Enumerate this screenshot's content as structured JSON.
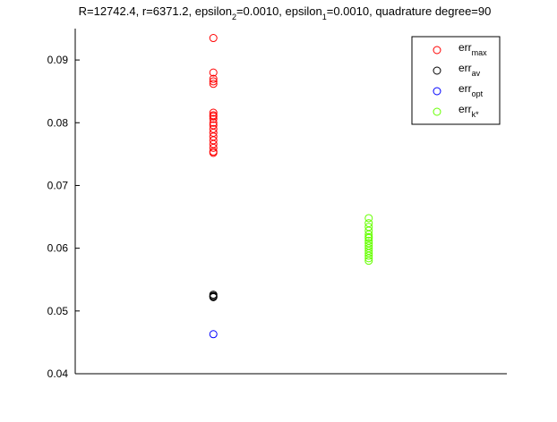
{
  "chart_data": {
    "type": "scatter",
    "title": {
      "parts": [
        {
          "text": "R=12742.4, r=6371.2, epsilon",
          "sub": false
        },
        {
          "text": "2",
          "sub": true
        },
        {
          "text": "=0.0010, epsilon",
          "sub": false
        },
        {
          "text": "1",
          "sub": true
        },
        {
          "text": "=0.0010, quadrature degree=90",
          "sub": false
        }
      ]
    },
    "xlabel": "",
    "ylabel": "",
    "ylim": [
      0.04,
      0.095
    ],
    "yticks": [
      0.04,
      0.05,
      0.06,
      0.07,
      0.08,
      0.09
    ],
    "ytick_labels": [
      "0.04",
      "0.05",
      "0.06",
      "0.07",
      "0.08",
      "0.09"
    ],
    "xlim": [
      0,
      1
    ],
    "legend_position": "top-right",
    "series": [
      {
        "name": "err",
        "sub": "max",
        "color": "#ff0000",
        "x": [
          0.32,
          0.32,
          0.32,
          0.32,
          0.32,
          0.32,
          0.32,
          0.32,
          0.32,
          0.32,
          0.32,
          0.32,
          0.32,
          0.32,
          0.32,
          0.32,
          0.32,
          0.32,
          0.32
        ],
        "y": [
          0.0935,
          0.088,
          0.087,
          0.0866,
          0.0862,
          0.0816,
          0.0812,
          0.0806,
          0.08,
          0.0796,
          0.079,
          0.0784,
          0.0778,
          0.0772,
          0.0766,
          0.076,
          0.0754,
          0.0752,
          0.081
        ]
      },
      {
        "name": "err",
        "sub": "av",
        "color": "#000000",
        "x": [
          0.32,
          0.32,
          0.32,
          0.32
        ],
        "y": [
          0.0526,
          0.0524,
          0.0522,
          0.0523
        ]
      },
      {
        "name": "err",
        "sub": "opt",
        "color": "#0000ff",
        "x": [
          0.32
        ],
        "y": [
          0.0463
        ]
      },
      {
        "name": "err",
        "sub": "k*",
        "color": "#66ff00",
        "x": [
          0.68,
          0.68,
          0.68,
          0.68,
          0.68,
          0.68,
          0.68,
          0.68,
          0.68,
          0.68,
          0.68,
          0.68,
          0.68,
          0.68,
          0.68,
          0.68
        ],
        "y": [
          0.0648,
          0.064,
          0.0634,
          0.0628,
          0.0622,
          0.0616,
          0.0612,
          0.0608,
          0.0604,
          0.06,
          0.0596,
          0.0592,
          0.0588,
          0.0584,
          0.058,
          0.0618
        ]
      }
    ]
  }
}
